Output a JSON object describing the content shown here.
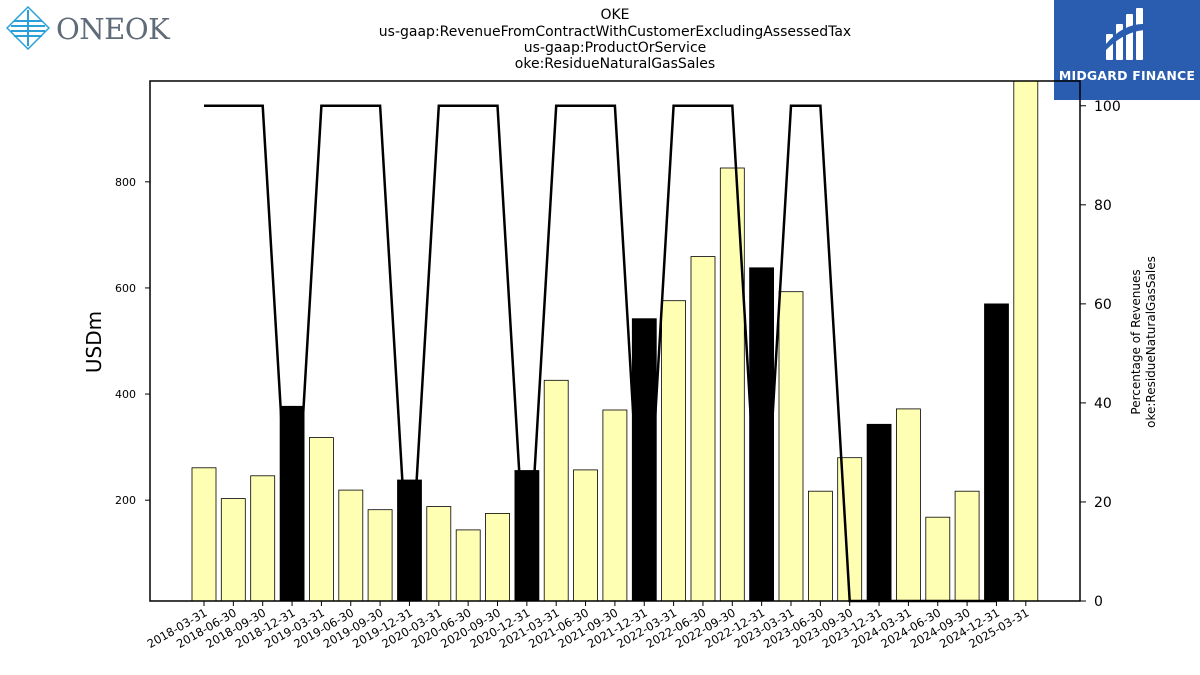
{
  "header": {
    "title_lines": [
      "OKE",
      "us-gaap:RevenueFromContractWithCustomerExcludingAssessedTax",
      "us-gaap:ProductOrService",
      "oke:ResidueNaturalGasSales"
    ]
  },
  "logos": {
    "left": {
      "text": "ONEOK",
      "icon": "diamond-logo-icon",
      "color": "#5f6b78",
      "accent": "#2aa0d8"
    },
    "right": {
      "text": "MIDGARD FINANCE",
      "icon": "midgard-logo-icon",
      "background": "#2a5db0"
    }
  },
  "chart_data": {
    "type": "bar",
    "title": "",
    "ylabel": "USDm",
    "y2label_lines": [
      "Percentage of Revenues",
      "oke:ResidueNaturalGasSales"
    ],
    "ylim": [
      10,
      990
    ],
    "y2lim": [
      0,
      105
    ],
    "yticks": [
      200,
      400,
      600,
      800
    ],
    "y2ticks": [
      0,
      20,
      40,
      60,
      80,
      100
    ],
    "colors": {
      "highlight": "#000000",
      "normal": "#ffffb3",
      "line": "#000000"
    },
    "categories": [
      "2018-03-31",
      "2018-06-30",
      "2018-09-30",
      "2018-12-31",
      "2019-03-31",
      "2019-06-30",
      "2019-09-30",
      "2019-12-31",
      "2020-03-31",
      "2020-06-30",
      "2020-09-30",
      "2020-12-31",
      "2021-03-31",
      "2021-06-30",
      "2021-09-30",
      "2021-12-31",
      "2022-03-31",
      "2022-06-30",
      "2022-09-30",
      "2022-12-31",
      "2023-03-31",
      "2023-06-30",
      "2023-09-30",
      "2023-12-31",
      "2024-03-31",
      "2024-06-30",
      "2024-09-30",
      "2024-12-31",
      "2025-03-31"
    ],
    "values": [
      261,
      203,
      246,
      377,
      318,
      219,
      182,
      238,
      188,
      144,
      175,
      256,
      426,
      257,
      370,
      542,
      576,
      659,
      826,
      638,
      593,
      217,
      280,
      343,
      372,
      168,
      217,
      570,
      990
    ],
    "highlight": [
      false,
      false,
      false,
      true,
      false,
      false,
      false,
      true,
      false,
      false,
      false,
      true,
      false,
      false,
      false,
      true,
      false,
      false,
      false,
      true,
      false,
      false,
      false,
      true,
      false,
      false,
      false,
      true,
      false
    ],
    "percentage": [
      100,
      100,
      100,
      0,
      100,
      100,
      100,
      0,
      100,
      100,
      100,
      0,
      100,
      100,
      100,
      0,
      100,
      100,
      100,
      0,
      100,
      100,
      0,
      0,
      0,
      0,
      0,
      0,
      null
    ]
  }
}
